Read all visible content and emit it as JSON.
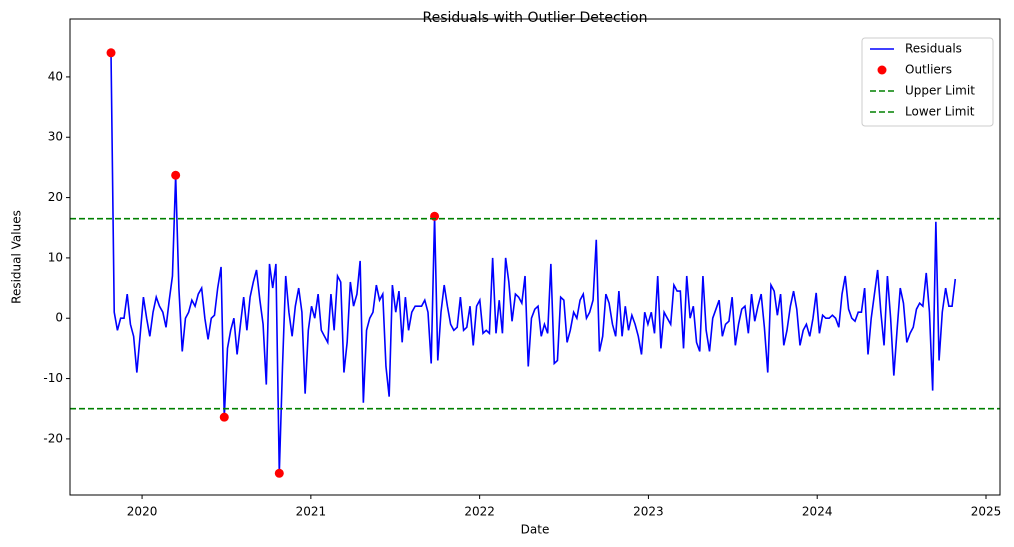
{
  "chart_data": {
    "type": "line",
    "title": "Residuals with Outlier Detection",
    "x_label": "Date",
    "y_label": "Residual Values",
    "x": [
      2019.816,
      2019.835,
      2019.854,
      2019.873,
      2019.893,
      2019.912,
      2019.931,
      2019.95,
      2019.969,
      2019.988,
      2020.008,
      2020.027,
      2020.046,
      2020.065,
      2020.084,
      2020.103,
      2020.123,
      2020.142,
      2020.161,
      2020.18,
      2020.199,
      2020.218,
      2020.238,
      2020.257,
      2020.276,
      2020.295,
      2020.314,
      2020.333,
      2020.353,
      2020.372,
      2020.391,
      2020.41,
      2020.429,
      2020.448,
      2020.468,
      2020.487,
      2020.506,
      2020.525,
      2020.544,
      2020.563,
      2020.583,
      2020.602,
      2020.621,
      2020.64,
      2020.659,
      2020.678,
      2020.698,
      2020.717,
      2020.736,
      2020.755,
      2020.774,
      2020.793,
      2020.813,
      2020.832,
      2020.851,
      2020.87,
      2020.889,
      2020.908,
      2020.928,
      2020.947,
      2020.966,
      2020.985,
      2021.004,
      2021.023,
      2021.043,
      2021.062,
      2021.081,
      2021.1,
      2021.119,
      2021.138,
      2021.158,
      2021.177,
      2021.196,
      2021.215,
      2021.234,
      2021.253,
      2021.273,
      2021.292,
      2021.311,
      2021.33,
      2021.349,
      2021.368,
      2021.388,
      2021.407,
      2021.426,
      2021.445,
      2021.464,
      2021.483,
      2021.503,
      2021.522,
      2021.541,
      2021.56,
      2021.579,
      2021.598,
      2021.618,
      2021.637,
      2021.656,
      2021.675,
      2021.694,
      2021.713,
      2021.733,
      2021.752,
      2021.771,
      2021.79,
      2021.809,
      2021.828,
      2021.847,
      2021.867,
      2021.886,
      2021.905,
      2021.924,
      2021.943,
      2021.962,
      2021.982,
      2022.001,
      2022.02,
      2022.039,
      2022.058,
      2022.077,
      2022.097,
      2022.116,
      2022.135,
      2022.154,
      2022.173,
      2022.192,
      2022.212,
      2022.231,
      2022.25,
      2022.269,
      2022.288,
      2022.307,
      2022.327,
      2022.346,
      2022.365,
      2022.384,
      2022.403,
      2022.422,
      2022.442,
      2022.461,
      2022.48,
      2022.499,
      2022.518,
      2022.537,
      2022.557,
      2022.576,
      2022.595,
      2022.614,
      2022.633,
      2022.652,
      2022.672,
      2022.691,
      2022.71,
      2022.729,
      2022.748,
      2022.767,
      2022.787,
      2022.806,
      2022.825,
      2022.844,
      2022.863,
      2022.882,
      2022.902,
      2022.921,
      2022.94,
      2022.959,
      2022.978,
      2022.997,
      2023.017,
      2023.036,
      2023.055,
      2023.074,
      2023.093,
      2023.112,
      2023.132,
      2023.151,
      2023.17,
      2023.189,
      2023.208,
      2023.227,
      2023.247,
      2023.266,
      2023.285,
      2023.304,
      2023.323,
      2023.342,
      2023.362,
      2023.381,
      2023.4,
      2023.419,
      2023.438,
      2023.457,
      2023.477,
      2023.496,
      2023.515,
      2023.534,
      2023.553,
      2023.572,
      2023.592,
      2023.611,
      2023.63,
      2023.649,
      2023.668,
      2023.687,
      2023.707,
      2023.726,
      2023.745,
      2023.764,
      2023.783,
      2023.802,
      2023.821,
      2023.841,
      2023.86,
      2023.879,
      2023.898,
      2023.917,
      2023.936,
      2023.956,
      2023.975,
      2023.994,
      2024.013,
      2024.032,
      2024.051,
      2024.071,
      2024.09,
      2024.109,
      2024.128,
      2024.147,
      2024.166,
      2024.186,
      2024.205,
      2024.224,
      2024.243,
      2024.262,
      2024.281,
      2024.301,
      2024.32,
      2024.339,
      2024.358,
      2024.377,
      2024.396,
      2024.416,
      2024.435,
      2024.454,
      2024.473,
      2024.492,
      2024.511,
      2024.531,
      2024.55,
      2024.569,
      2024.588,
      2024.607,
      2024.626,
      2024.646,
      2024.665,
      2024.684,
      2024.703,
      2024.722,
      2024.741,
      2024.761,
      2024.78,
      2024.799,
      2024.818
    ],
    "series": [
      {
        "name": "Residuals",
        "color": "#0000ff",
        "values": [
          44,
          1,
          -2,
          0,
          0,
          4,
          -1,
          -3,
          -9,
          -3,
          3.5,
          0,
          -3,
          1,
          3.5,
          2,
          1,
          -1.5,
          3,
          7,
          23.7,
          5,
          -5.5,
          0,
          1,
          3,
          2,
          4,
          5,
          0,
          -3.5,
          0,
          0.5,
          5,
          8.5,
          -16.4,
          -5,
          -2,
          0,
          -6,
          -1,
          3.5,
          -2,
          3.5,
          6,
          8,
          3,
          -1,
          -11,
          9,
          5,
          9,
          -25.7,
          -8,
          7,
          1,
          -3,
          2,
          5,
          1,
          -12.5,
          -2,
          2,
          0,
          4,
          -2,
          -3,
          -4,
          4,
          -2,
          7,
          6,
          -9,
          -4,
          6,
          2,
          4,
          9.5,
          -14,
          -2,
          0,
          1,
          5.5,
          3,
          4,
          -8,
          -13,
          5.5,
          1,
          4.5,
          -4,
          3.5,
          -2,
          1,
          2,
          2,
          2,
          3,
          1,
          -7.5,
          16.9,
          -7,
          1,
          5.5,
          2,
          -1,
          -2,
          -1.5,
          3.5,
          -2,
          -1.5,
          2,
          -4.5,
          2,
          3,
          -2.5,
          -2,
          -2.5,
          10,
          -2.5,
          3,
          -2.5,
          10,
          6,
          -0.5,
          4,
          3.5,
          2.5,
          7,
          -8,
          0,
          1.5,
          2,
          -3,
          -1,
          -2.5,
          9,
          -7.5,
          -7,
          3.5,
          3,
          -4,
          -2,
          1,
          0,
          3,
          4,
          0,
          1,
          3,
          13,
          -5.5,
          -3,
          4,
          2.5,
          -1,
          -3,
          4.5,
          -3,
          2,
          -2,
          0.5,
          -1,
          -3,
          -6,
          1,
          -1,
          1,
          -2.5,
          7,
          -5,
          1,
          0,
          -1,
          5.5,
          4.5,
          4.5,
          -5,
          7,
          0,
          2,
          -4,
          -5.5,
          7,
          -2,
          -5.5,
          0,
          1.5,
          3,
          -3,
          -1,
          -0.5,
          3.5,
          -4.5,
          -1,
          1.5,
          2,
          -2.5,
          4,
          -0.5,
          2,
          4,
          -1.5,
          -9,
          5.5,
          4.5,
          0.5,
          4,
          -4.5,
          -2,
          2,
          4.5,
          1.5,
          -4.5,
          -2,
          -1,
          -3,
          0,
          4.2,
          -2.5,
          0.5,
          0,
          0,
          0.5,
          0,
          -1.5,
          4,
          7,
          1.5,
          0,
          -0.5,
          1,
          1,
          5,
          -6,
          0,
          4,
          8,
          1,
          -4.5,
          7,
          0,
          -9.5,
          -2,
          5,
          2.5,
          -4,
          -2.5,
          -1.5,
          1.5,
          2.5,
          2,
          7.5,
          1,
          -12,
          16,
          -7,
          1,
          5,
          2,
          2,
          6.5
        ]
      }
    ],
    "outliers": {
      "name": "Outliers",
      "color": "#ff0000",
      "x": [
        2019.816,
        2020.199,
        2020.487,
        2020.813,
        2021.733
      ],
      "values": [
        44,
        23.7,
        -16.4,
        -25.7,
        16.9
      ]
    },
    "hlines": [
      {
        "name": "Upper Limit",
        "value": 16.5,
        "color": "#008000"
      },
      {
        "name": "Lower Limit",
        "value": -15,
        "color": "#008000"
      }
    ],
    "xlim": [
      2019.573,
      2025.083
    ],
    "ylim": [
      -29.3,
      49.6
    ],
    "xticks": [
      2020,
      2021,
      2022,
      2023,
      2024,
      2025
    ],
    "yticks": [
      -20,
      -10,
      0,
      10,
      20,
      30,
      40
    ],
    "legend": "upper right"
  }
}
